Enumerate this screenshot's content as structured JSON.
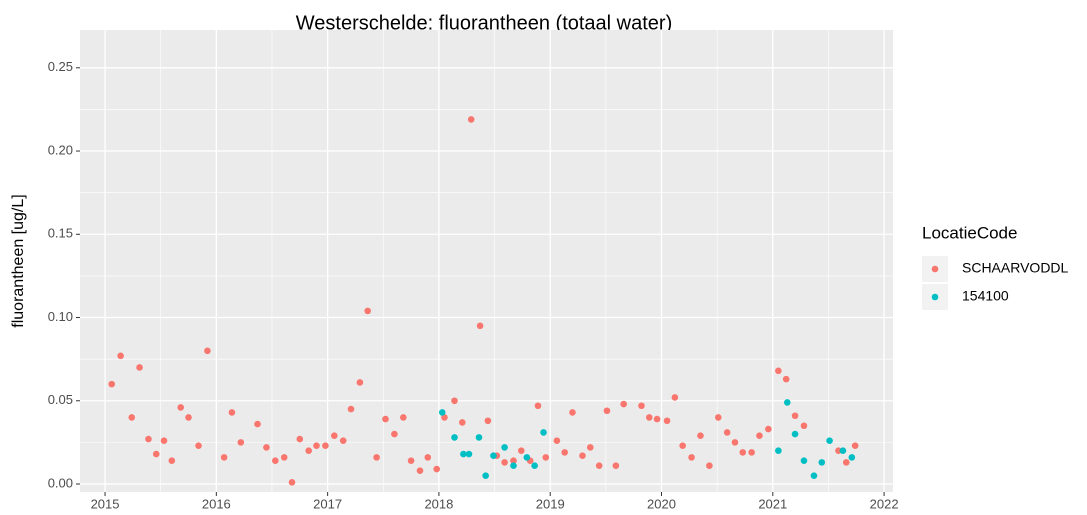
{
  "chart_data": {
    "type": "scatter",
    "title": "Westerschelde: fluorantheen (totaal water)",
    "y_label": "fluorantheen [ug/L]",
    "legend_title": "LocatieCode",
    "legend_position": "right",
    "grid": true,
    "xlim": [
      2014.775,
      2022.08
    ],
    "ylim": [
      -0.0048,
      0.2727
    ],
    "xticks": [
      2015,
      2016,
      2017,
      2018,
      2019,
      2020,
      2021,
      2022
    ],
    "yticks": [
      {
        "value": 0,
        "label": "0.00"
      },
      {
        "value": 0.05,
        "label": "0.05"
      },
      {
        "value": 0.1,
        "label": "0.10"
      },
      {
        "value": 0.15,
        "label": "0.15"
      },
      {
        "value": 0.2,
        "label": "0.20"
      },
      {
        "value": 0.25,
        "label": "0.25"
      }
    ],
    "series": [
      {
        "name": "SCHAARVODDL",
        "color": "#f8766d",
        "x": [
          2015.06,
          2015.14,
          2015.24,
          2015.31,
          2015.39,
          2015.46,
          2015.53,
          2015.6,
          2015.68,
          2015.75,
          2015.84,
          2015.92,
          2016.07,
          2016.14,
          2016.22,
          2016.37,
          2016.45,
          2016.53,
          2016.61,
          2016.68,
          2016.75,
          2016.83,
          2016.9,
          2016.98,
          2017.06,
          2017.14,
          2017.21,
          2017.29,
          2017.36,
          2017.44,
          2017.52,
          2017.6,
          2017.68,
          2017.75,
          2017.83,
          2017.9,
          2017.98,
          2018.05,
          2018.14,
          2018.21,
          2018.29,
          2018.37,
          2018.44,
          2018.52,
          2018.59,
          2018.67,
          2018.74,
          2018.82,
          2018.89,
          2018.96,
          2019.06,
          2019.13,
          2019.2,
          2019.29,
          2019.36,
          2019.44,
          2019.51,
          2019.59,
          2019.66,
          2019.82,
          2019.89,
          2019.96,
          2020.05,
          2020.12,
          2020.19,
          2020.27,
          2020.35,
          2020.43,
          2020.51,
          2020.59,
          2020.66,
          2020.73,
          2020.81,
          2020.88,
          2020.96,
          2021.05,
          2021.12,
          2021.2,
          2021.28,
          2021.59,
          2021.66,
          2021.74
        ],
        "values": [
          0.06,
          0.077,
          0.04,
          0.07,
          0.027,
          0.018,
          0.026,
          0.014,
          0.046,
          0.04,
          0.023,
          0.08,
          0.016,
          0.043,
          0.025,
          0.036,
          0.022,
          0.014,
          0.016,
          0.001,
          0.027,
          0.02,
          0.023,
          0.023,
          0.029,
          0.026,
          0.045,
          0.061,
          0.104,
          0.016,
          0.039,
          0.03,
          0.04,
          0.014,
          0.008,
          0.016,
          0.009,
          0.04,
          0.05,
          0.037,
          0.219,
          0.095,
          0.038,
          0.017,
          0.013,
          0.014,
          0.02,
          0.014,
          0.047,
          0.016,
          0.026,
          0.019,
          0.043,
          0.017,
          0.022,
          0.011,
          0.044,
          0.011,
          0.048,
          0.047,
          0.04,
          0.039,
          0.038,
          0.052,
          0.023,
          0.016,
          0.029,
          0.011,
          0.04,
          0.031,
          0.025,
          0.019,
          0.019,
          0.029,
          0.033,
          0.068,
          0.063,
          0.041,
          0.035,
          0.02,
          0.013,
          0.023
        ]
      },
      {
        "name": "154100",
        "color": "#00bfc4",
        "x": [
          2018.03,
          2018.14,
          2018.22,
          2018.27,
          2018.36,
          2018.42,
          2018.49,
          2018.59,
          2018.67,
          2018.79,
          2018.86,
          2018.94,
          2021.05,
          2021.13,
          2021.2,
          2021.28,
          2021.37,
          2021.44,
          2021.51,
          2021.63,
          2021.71
        ],
        "values": [
          0.043,
          0.028,
          0.018,
          0.018,
          0.028,
          0.005,
          0.017,
          0.022,
          0.011,
          0.016,
          0.011,
          0.031,
          0.02,
          0.049,
          0.03,
          0.014,
          0.005,
          0.013,
          0.026,
          0.02,
          0.016
        ]
      }
    ]
  }
}
